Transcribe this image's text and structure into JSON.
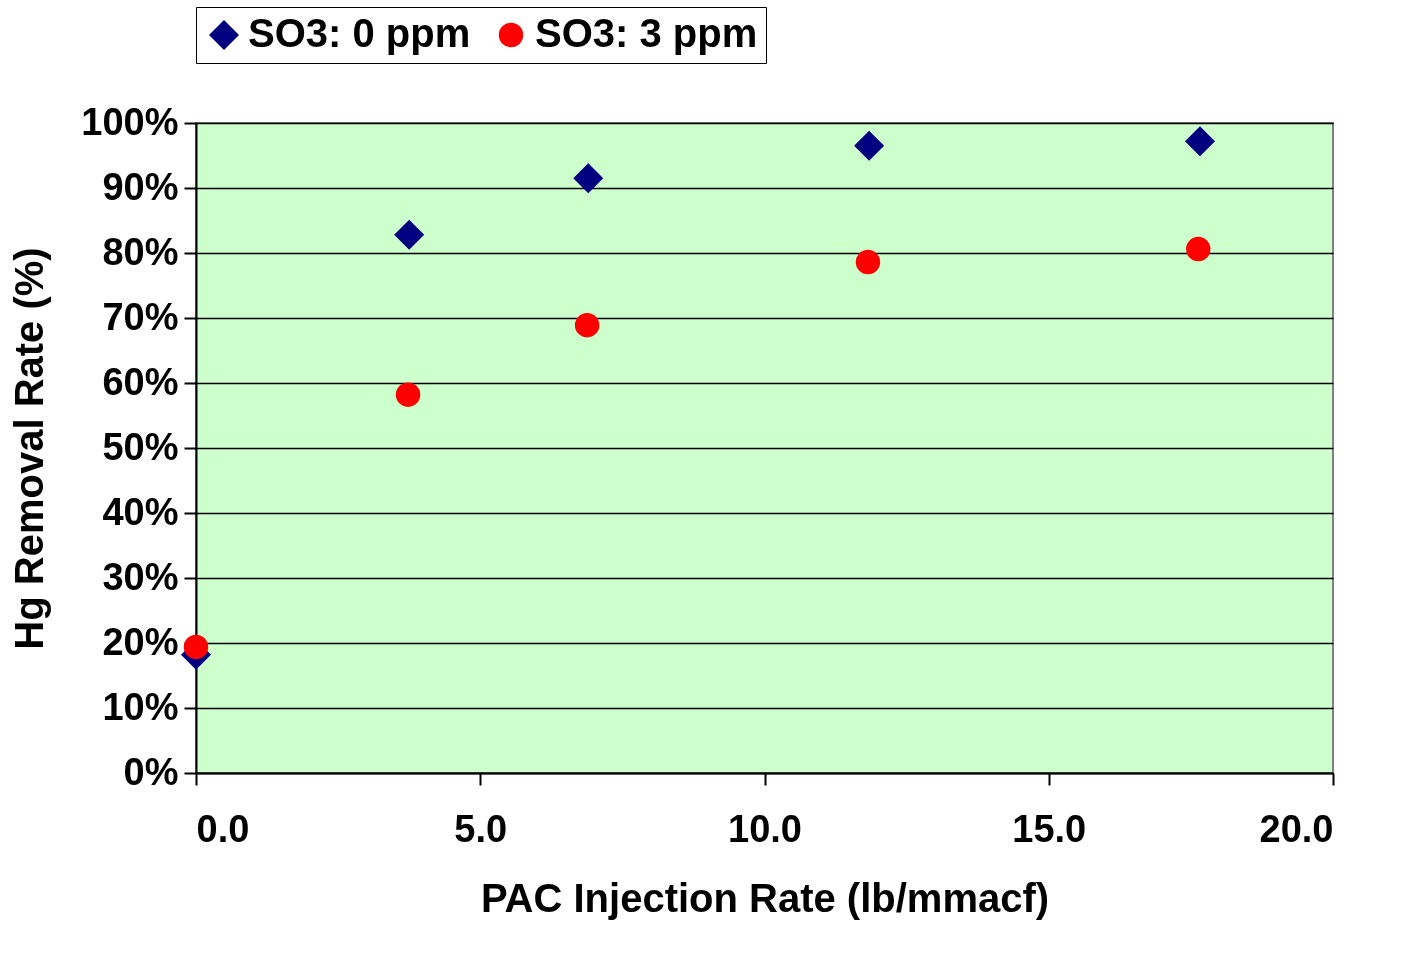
{
  "chart_data": {
    "type": "scatter",
    "xlabel": "PAC Injection Rate (lb/mmacf)",
    "ylabel": "Hg Removal Rate (%)",
    "series": [
      {
        "name": "SO3: 0 ppm",
        "color": "#000080",
        "marker": "diamond",
        "x": [
          0,
          3.75,
          6.9,
          11.84,
          17.66
        ],
        "values": [
          18.2,
          82.8,
          91.5,
          96.5,
          97.2
        ]
      },
      {
        "name": "SO3: 3 ppm",
        "color": "#ff0000",
        "marker": "circle",
        "x": [
          0,
          3.73,
          6.88,
          11.82,
          17.63
        ],
        "values": [
          19.4,
          58.2,
          68.9,
          78.6,
          80.6
        ]
      }
    ],
    "xlim": [
      0,
      20
    ],
    "xticks": [
      {
        "value": 0,
        "label": "0.0"
      },
      {
        "value": 5,
        "label": "5.0"
      },
      {
        "value": 10,
        "label": "10.0"
      },
      {
        "value": 15,
        "label": "15.0"
      },
      {
        "value": 20,
        "label": "20.0"
      }
    ],
    "ylim": [
      0,
      100
    ],
    "yticks": [
      {
        "value": 0,
        "label": "0%"
      },
      {
        "value": 10,
        "label": "10%"
      },
      {
        "value": 20,
        "label": "20%"
      },
      {
        "value": 30,
        "label": "30%"
      },
      {
        "value": 40,
        "label": "40%"
      },
      {
        "value": 50,
        "label": "50%"
      },
      {
        "value": 60,
        "label": "60%"
      },
      {
        "value": 70,
        "label": "70%"
      },
      {
        "value": 80,
        "label": "80%"
      },
      {
        "value": 90,
        "label": "90%"
      },
      {
        "value": 100,
        "label": "100%"
      }
    ],
    "grid": "y",
    "legend": "top"
  }
}
